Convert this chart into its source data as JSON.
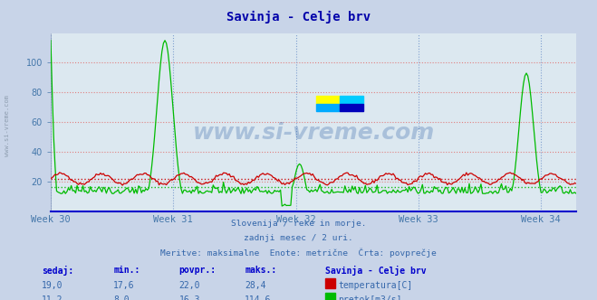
{
  "title": "Savinja - Celje brv",
  "bg_color": "#c8d4e8",
  "plot_bg_color": "#dce8f0",
  "grid_color_h": "#e08080",
  "grid_color_v": "#80a0d0",
  "line_color_temp": "#cc0000",
  "line_color_flow": "#00bb00",
  "title_color": "#0000aa",
  "label_color": "#4477aa",
  "text_color": "#3366aa",
  "watermark_color": "#3366aa",
  "week_labels": [
    "Week 30",
    "Week 31",
    "Week 32",
    "Week 33",
    "Week 34"
  ],
  "week_positions": [
    0,
    84,
    168,
    252,
    336
  ],
  "ylim": [
    0,
    120
  ],
  "yticks": [
    20,
    40,
    60,
    80,
    100
  ],
  "avg_temp": 22.0,
  "avg_flow": 16.3,
  "n_points": 360,
  "footer_lines": [
    "Slovenija / reke in morje.",
    "zadnji mesec / 2 uri.",
    "Meritve: maksimalne  Enote: metrične  Črta: povprečje"
  ],
  "table_headers": [
    "sedaj:",
    "min.:",
    "povpr.:",
    "maks.:"
  ],
  "table_row1": [
    "19,0",
    "17,6",
    "22,0",
    "28,4"
  ],
  "table_row2": [
    "11,2",
    "8,0",
    "16,3",
    "114,6"
  ],
  "legend_label1": "temperatura[C]",
  "legend_label2": "pretok[m3/s]",
  "legend_color1": "#cc0000",
  "legend_color2": "#00bb00",
  "station_label": "Savinja - Celje brv",
  "header_color": "#0000cc",
  "left_watermark": "www.si-vreme.com"
}
